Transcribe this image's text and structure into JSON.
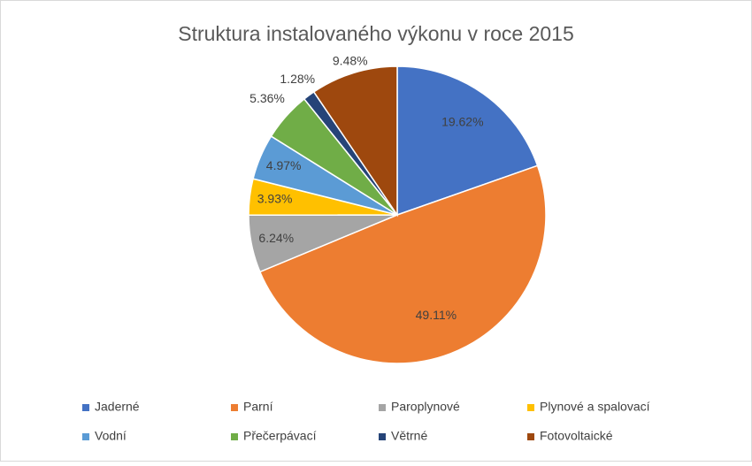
{
  "chart_data": {
    "type": "pie",
    "title": "Struktura instalovaného výkonu v roce 2015",
    "categories": [
      "Jaderné",
      "Parní",
      "Paroplynové",
      "Plynové a spalovací",
      "Vodní",
      "Přečerpávací",
      "Větrné",
      "Fotovoltaické"
    ],
    "values": [
      19.62,
      49.11,
      6.24,
      3.93,
      4.97,
      5.36,
      1.28,
      9.48
    ],
    "value_labels": [
      "19.62%",
      "49.11%",
      "6.24%",
      "3.93%",
      "4.97%",
      "5.36%",
      "1.28%",
      "9.48%"
    ],
    "colors": [
      "#4472c4",
      "#ed7d31",
      "#a5a5a5",
      "#ffc000",
      "#5b9bd5",
      "#70ad47",
      "#264478",
      "#9e480e"
    ],
    "legend": "bottom"
  }
}
